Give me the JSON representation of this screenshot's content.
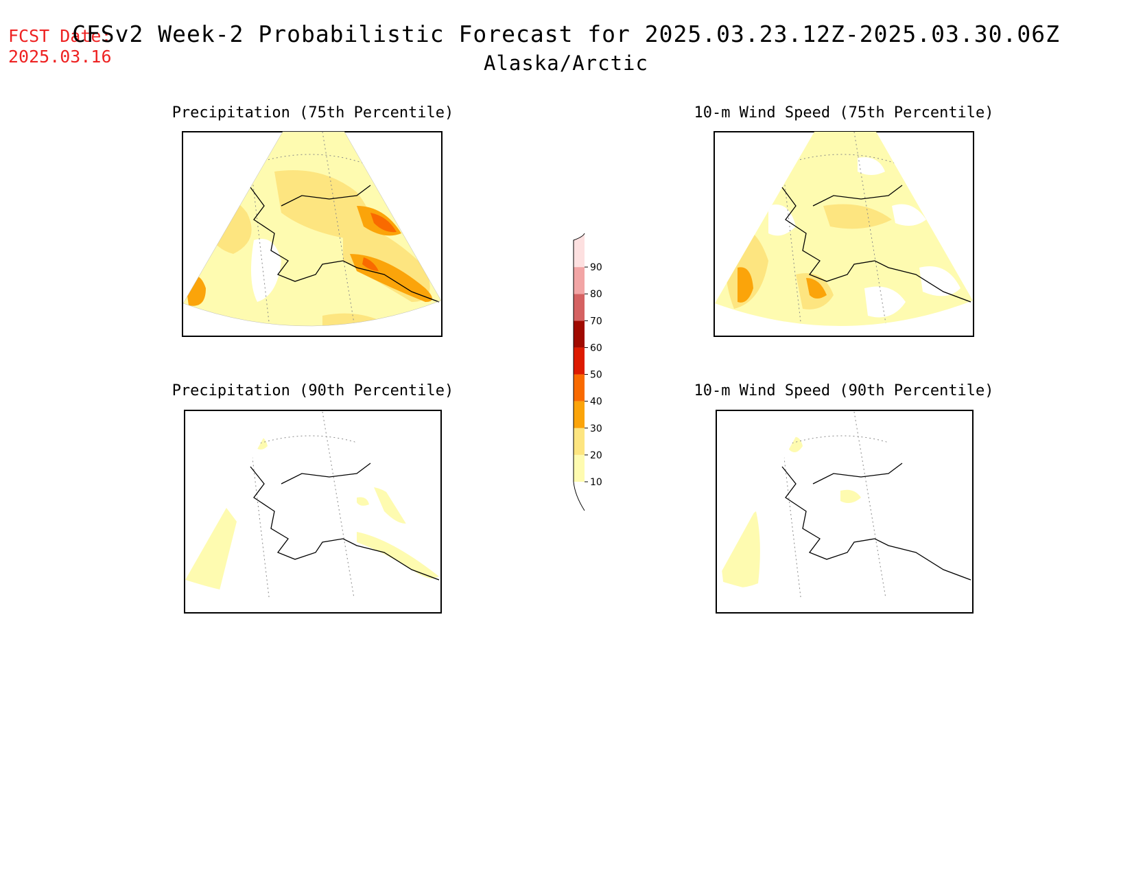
{
  "header": {
    "fcst_label": "FCST Date:",
    "fcst_date": "2025.03.16",
    "title": "CFSv2 Week-2 Probabilistic Forecast for 2025.03.23.12Z-2025.03.30.06Z",
    "region": "Alaska/Arctic"
  },
  "panels": [
    {
      "title": "Precipitation (75th Percentile)"
    },
    {
      "title": "10-m Wind Speed (75th Percentile)"
    },
    {
      "title": "Precipitation (90th Percentile)"
    },
    {
      "title": "10-m Wind Speed (90th Percentile)"
    }
  ],
  "colorbar": {
    "levels": [
      "10",
      "20",
      "30",
      "40",
      "50",
      "60",
      "70",
      "80",
      "90"
    ],
    "colors": [
      "#fefbb0",
      "#fde580",
      "#fba40a",
      "#f96a00",
      "#dd1b00",
      "#a00a00",
      "#d56262",
      "#f2a5a5",
      "#fde0e0"
    ]
  }
}
